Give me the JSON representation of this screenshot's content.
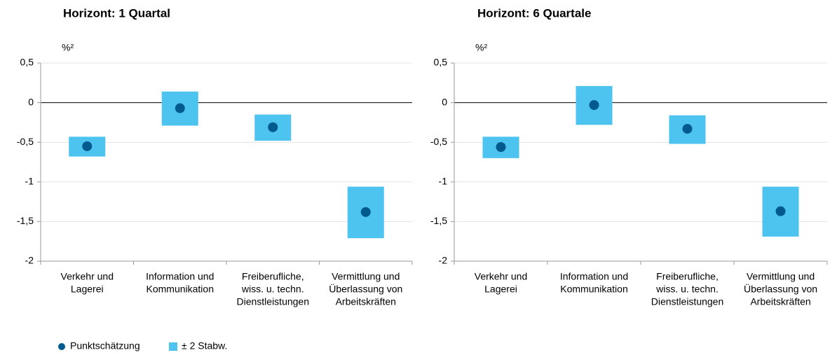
{
  "chart_data": [
    {
      "type": "range_dot",
      "title": "Horizont: 1 Quartal",
      "y_unit": "%²",
      "categories": [
        [
          "Verkehr und",
          "Lagerei"
        ],
        [
          "Information und",
          "Kommunikation"
        ],
        [
          "Freiberufliche,",
          "wiss. u. techn.",
          "Dienstleistungen"
        ],
        [
          "Vermittlung und",
          "Überlassung von",
          "Arbeitskräften"
        ]
      ],
      "series": [
        {
          "name": "Punktschätzung",
          "color": "#005a8c",
          "values": [
            -0.55,
            -0.07,
            -0.31,
            -1.38
          ]
        },
        {
          "name": "± 2 Stabw.",
          "color": "#4dc3f0",
          "lows": [
            -0.68,
            -0.29,
            -0.48,
            -1.71
          ],
          "highs": [
            -0.43,
            0.14,
            -0.15,
            -1.06
          ]
        }
      ],
      "ylim": [
        -2,
        0.5
      ],
      "yticks": [
        {
          "value": -2,
          "label": "-2"
        },
        {
          "value": -1.5,
          "label": "-1,5"
        },
        -1,
        {
          "value": -0.5,
          "label": "-0,5"
        },
        0,
        {
          "value": 0.5,
          "label": "0,5"
        }
      ],
      "grid": true
    },
    {
      "type": "range_dot",
      "title": "Horizont: 6 Quartale",
      "y_unit": "%²",
      "categories": [
        [
          "Verkehr und",
          "Lagerei"
        ],
        [
          "Information und",
          "Kommunikation"
        ],
        [
          "Freiberufliche,",
          "wiss. u. techn.",
          "Dienstleistungen"
        ],
        [
          "Vermittlung und",
          "Überlassung von",
          "Arbeitskräften"
        ]
      ],
      "series": [
        {
          "name": "Punktschätzung",
          "color": "#005a8c",
          "values": [
            -0.56,
            -0.03,
            -0.33,
            -1.37
          ]
        },
        {
          "name": "± 2 Stabw.",
          "color": "#4dc3f0",
          "lows": [
            -0.7,
            -0.28,
            -0.52,
            -1.69
          ],
          "highs": [
            -0.43,
            0.21,
            -0.16,
            -1.06
          ]
        }
      ],
      "ylim": [
        -2,
        0.5
      ],
      "yticks": [
        {
          "value": -2,
          "label": "-2"
        },
        {
          "value": -1.5,
          "label": "-1,5"
        },
        -1,
        {
          "value": -0.5,
          "label": "-0,5"
        },
        0,
        {
          "value": 0.5,
          "label": "0,5"
        }
      ],
      "grid": true
    }
  ]
}
